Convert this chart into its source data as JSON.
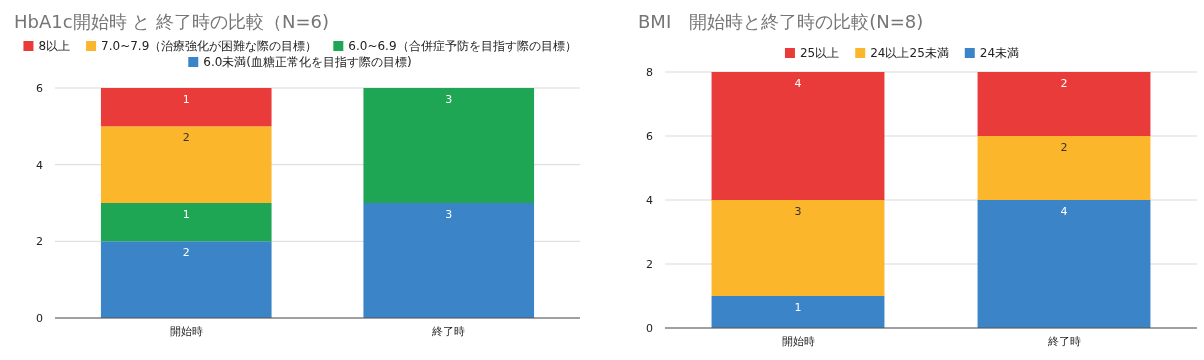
{
  "chart_data": [
    {
      "type": "bar",
      "title": "HbA1c開始時 と 終了時の比較（N=6)",
      "categories": [
        "開始時",
        "終了時"
      ],
      "stacked": true,
      "ylim": [
        0,
        6
      ],
      "yticks": [
        0,
        2,
        4,
        6
      ],
      "grid": "y",
      "legend": "top",
      "series": [
        {
          "name": "6.0未満(血糖正常化を目指す際の目標)",
          "color": "#3b84c8",
          "values": [
            2,
            3
          ],
          "value_labels": [
            "2",
            "3"
          ]
        },
        {
          "name": "6.0~6.9（合併症予防を目指す際の目標）",
          "color": "#1ea655",
          "values": [
            1,
            3
          ],
          "value_labels": [
            "1",
            "3"
          ]
        },
        {
          "name": "7.0~7.9（治療強化が困難な際の目標）",
          "color": "#fbb62b",
          "values": [
            2,
            0
          ],
          "value_labels": [
            "2",
            null
          ]
        },
        {
          "name": "8以上",
          "color": "#ea3b3b",
          "values": [
            1,
            0
          ],
          "value_labels": [
            "1",
            null
          ]
        }
      ]
    },
    {
      "type": "bar",
      "title": "BMI　開始時と終了時の比較(N=8)",
      "categories": [
        "開始時",
        "終了時"
      ],
      "stacked": true,
      "ylim": [
        0,
        8
      ],
      "yticks": [
        0,
        2,
        4,
        6,
        8
      ],
      "grid": "y",
      "legend": "top",
      "series": [
        {
          "name": "24未満",
          "color": "#3b84c8",
          "values": [
            1,
            4
          ],
          "value_labels": [
            "1",
            "4"
          ]
        },
        {
          "name": "24以上25未満",
          "color": "#fbb62b",
          "values": [
            3,
            2
          ],
          "value_labels": [
            "3",
            "2"
          ]
        },
        {
          "name": "25以上",
          "color": "#ea3b3b",
          "values": [
            4,
            2
          ],
          "value_labels": [
            "4",
            "2"
          ]
        }
      ]
    }
  ]
}
